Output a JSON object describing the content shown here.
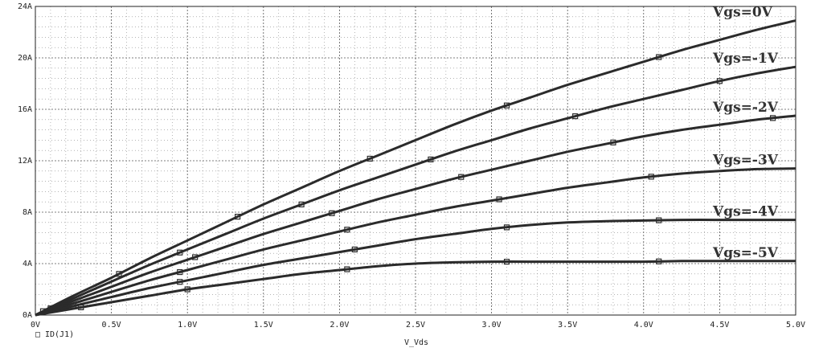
{
  "chart_data": {
    "type": "line",
    "xlabel": "V_Vds",
    "x_ticks": [
      "0V",
      "0.5V",
      "1.0V",
      "1.5V",
      "2.0V",
      "2.5V",
      "3.0V",
      "3.5V",
      "4.0V",
      "4.5V",
      "5.0V"
    ],
    "y_ticks": [
      "0A",
      "4A",
      "8A",
      "12A",
      "16A",
      "20A",
      "24A"
    ],
    "xlim": [
      0,
      5
    ],
    "ylim": [
      0,
      24
    ],
    "grid": true,
    "legend": {
      "marker": "□",
      "label": "ID(J1)"
    },
    "x": [
      0,
      0.25,
      0.5,
      0.75,
      1.0,
      1.25,
      1.5,
      1.75,
      2.0,
      2.25,
      2.5,
      2.75,
      3.0,
      3.25,
      3.5,
      3.75,
      4.0,
      4.25,
      4.5,
      4.75,
      5.0
    ],
    "series": [
      {
        "annotation": "Vgs=0V",
        "values": [
          0,
          1.5,
          2.9,
          4.4,
          5.8,
          7.2,
          8.6,
          9.9,
          11.2,
          12.4,
          13.6,
          14.8,
          15.9,
          16.9,
          17.9,
          18.8,
          19.7,
          20.6,
          21.4,
          22.2,
          22.9
        ]
      },
      {
        "annotation": "Vgs=-1V",
        "values": [
          0,
          1.3,
          2.6,
          3.9,
          5.1,
          6.3,
          7.5,
          8.6,
          9.7,
          10.7,
          11.7,
          12.7,
          13.6,
          14.5,
          15.3,
          16.1,
          16.8,
          17.5,
          18.2,
          18.8,
          19.3
        ]
      },
      {
        "annotation": "Vgs=-2V",
        "values": [
          0,
          1.1,
          2.2,
          3.3,
          4.3,
          5.3,
          6.3,
          7.2,
          8.1,
          9.0,
          9.8,
          10.6,
          11.3,
          12.0,
          12.7,
          13.3,
          13.9,
          14.4,
          14.8,
          15.2,
          15.5
        ]
      },
      {
        "annotation": "Vgs=-3V",
        "values": [
          0,
          0.9,
          1.8,
          2.7,
          3.5,
          4.3,
          5.1,
          5.8,
          6.5,
          7.2,
          7.8,
          8.4,
          8.9,
          9.4,
          9.9,
          10.3,
          10.7,
          11.0,
          11.2,
          11.35,
          11.4
        ]
      },
      {
        "annotation": "Vgs=-4V",
        "values": [
          0,
          0.7,
          1.4,
          2.1,
          2.7,
          3.3,
          3.9,
          4.4,
          4.9,
          5.4,
          5.9,
          6.3,
          6.7,
          7.0,
          7.2,
          7.3,
          7.35,
          7.4,
          7.4,
          7.4,
          7.4
        ]
      },
      {
        "annotation": "Vgs=-5V",
        "values": [
          0,
          0.5,
          1.0,
          1.5,
          2.0,
          2.4,
          2.8,
          3.2,
          3.5,
          3.8,
          4.0,
          4.1,
          4.15,
          4.15,
          4.15,
          4.15,
          4.15,
          4.2,
          4.2,
          4.2,
          4.2
        ]
      }
    ]
  }
}
